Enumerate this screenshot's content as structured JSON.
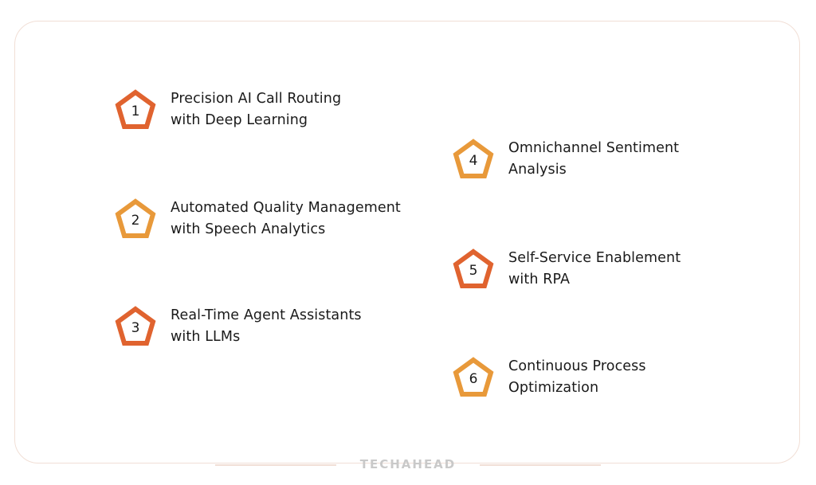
{
  "colors": {
    "primary": "#e0632f",
    "secondary": "#e8993a",
    "border": "#f1dfd6"
  },
  "items": [
    {
      "number": "1",
      "line1": "Precision AI Call Routing",
      "line2": "with Deep Learning",
      "color": "#e0632f"
    },
    {
      "number": "2",
      "line1": "Automated Quality Management",
      "line2": "with Speech Analytics",
      "color": "#e8993a"
    },
    {
      "number": "3",
      "line1": "Real-Time Agent Assistants",
      "line2": "with LLMs",
      "color": "#e0632f"
    },
    {
      "number": "4",
      "line1": "Omnichannel Sentiment",
      "line2": "Analysis",
      "color": "#e8993a"
    },
    {
      "number": "5",
      "line1": "Self-Service Enablement",
      "line2": "with RPA",
      "color": "#e0632f"
    },
    {
      "number": "6",
      "line1": "Continuous Process",
      "line2": "Optimization",
      "color": "#e8993a"
    }
  ],
  "footer": {
    "brand": "TECHAHEAD"
  }
}
